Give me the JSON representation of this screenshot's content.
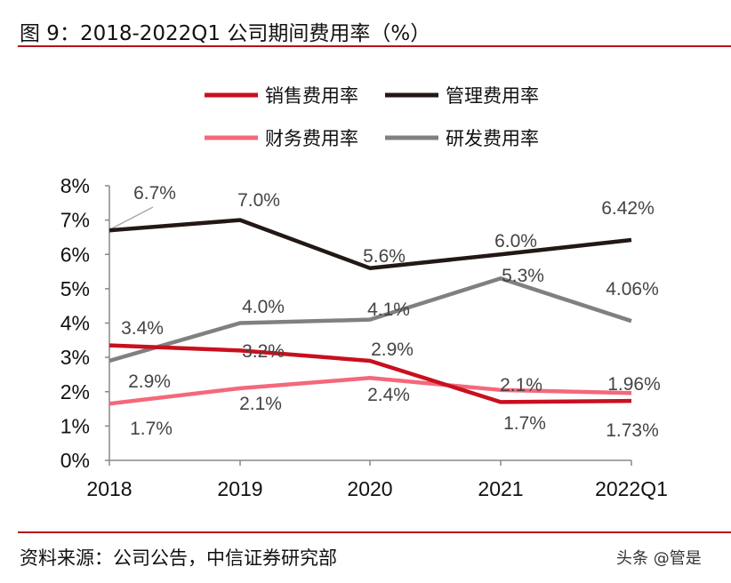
{
  "title": "图 9：2018-2022Q1 公司期间费用率（%）",
  "source": "资料来源：公司公告，中信证券研究部",
  "watermark": "头条 @管是",
  "chart_data": {
    "type": "line",
    "title": "",
    "xlabel": "",
    "ylabel": "",
    "categories": [
      "2018",
      "2019",
      "2020",
      "2021",
      "2022Q1"
    ],
    "ylim": [
      0,
      8
    ],
    "yticks": [
      "0%",
      "1%",
      "2%",
      "3%",
      "4%",
      "5%",
      "6%",
      "7%",
      "8%"
    ],
    "grid": false,
    "legend_position": "top",
    "series": [
      {
        "name": "销售费用率",
        "color": "#C8101E",
        "values": [
          3.35,
          3.2,
          2.9,
          1.7,
          1.73
        ],
        "labels": [
          "3.4%",
          "3.2%",
          "2.9%",
          "1.7%",
          "1.73%"
        ]
      },
      {
        "name": "管理费用率",
        "color": "#231815",
        "values": [
          6.7,
          7.0,
          5.6,
          6.0,
          6.42
        ],
        "labels": [
          "6.7%",
          "7.0%",
          "5.6%",
          "6.0%",
          "6.42%"
        ]
      },
      {
        "name": "财务费用率",
        "color": "#F4687A",
        "values": [
          1.65,
          2.1,
          2.4,
          2.05,
          1.96
        ],
        "labels": [
          "1.7%",
          "2.1%",
          "2.4%",
          "2.1%",
          "1.96%"
        ]
      },
      {
        "name": "研发费用率",
        "color": "#808080",
        "values": [
          2.9,
          4.0,
          4.1,
          5.3,
          4.06
        ],
        "labels": [
          "2.9%",
          "4.0%",
          "4.1%",
          "5.3%",
          "4.06%"
        ]
      }
    ]
  }
}
